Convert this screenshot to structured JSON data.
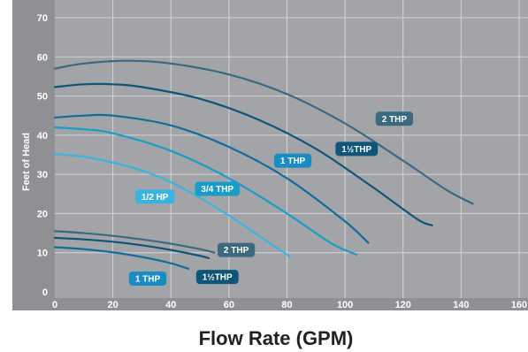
{
  "chart_data": {
    "type": "line",
    "xlabel": "Flow Rate (GPM)",
    "ylabel": "Feet of Head",
    "xlim": [
      0,
      160
    ],
    "ylim": [
      0,
      73
    ],
    "x_ticks": [
      "0",
      "20",
      "40",
      "60",
      "80",
      "100",
      "120",
      "140",
      "160"
    ],
    "y_ticks": [
      "0",
      "10",
      "20",
      "30",
      "40",
      "50",
      "60",
      "70"
    ],
    "grid": true,
    "colors": {
      "panel_background": "#a2a4a7",
      "axis_band": "#8e9093",
      "grid": "#d4d5d7"
    },
    "series": [
      {
        "name": "2 THP",
        "color": "#3b6a80",
        "x": [
          0,
          10,
          25,
          40,
          60,
          80,
          100,
          120,
          135,
          144
        ],
        "y": [
          57,
          58.3,
          59,
          58.3,
          55.5,
          50.5,
          43,
          33.5,
          26,
          22.5
        ]
      },
      {
        "name": "1½THP",
        "color": "#0e5578",
        "x": [
          0,
          10,
          20,
          30,
          50,
          70,
          90,
          110,
          125,
          130
        ],
        "y": [
          52.3,
          53,
          53,
          52.3,
          49.3,
          44,
          36.5,
          26.5,
          18.5,
          17
        ]
      },
      {
        "name": "1 THP",
        "color": "#136d9c",
        "x": [
          0,
          10,
          20,
          40,
          60,
          80,
          100,
          108
        ],
        "y": [
          44.5,
          45,
          45,
          42.5,
          37,
          29,
          18,
          12.5
        ]
      },
      {
        "name": "3/4 THP",
        "color": "#1a9cc8",
        "x": [
          0,
          10,
          20,
          40,
          60,
          80,
          95,
          104
        ],
        "y": [
          42,
          41.5,
          40.5,
          36,
          29,
          20,
          12.5,
          9.5
        ]
      },
      {
        "name": "1/2 HP",
        "color": "#3bb3e0",
        "x": [
          0,
          10,
          20,
          30,
          40,
          50,
          60,
          70,
          78,
          81
        ],
        "y": [
          35.2,
          34.5,
          33,
          31,
          28,
          24,
          19.5,
          14.5,
          10.5,
          9
        ]
      },
      {
        "name": "2 THP",
        "color": "#3b6a80",
        "x": [
          0,
          10,
          20,
          30,
          40,
          50,
          55
        ],
        "y": [
          15.5,
          15,
          14.3,
          13.4,
          12.3,
          10.9,
          10
        ]
      },
      {
        "name": "1½THP",
        "color": "#0e5578",
        "x": [
          0,
          10,
          20,
          30,
          40,
          50,
          53
        ],
        "y": [
          13.8,
          13.4,
          12.8,
          11.9,
          10.7,
          9.2,
          8.6
        ]
      },
      {
        "name": "1 THP",
        "color": "#136d9c",
        "x": [
          0,
          10,
          20,
          30,
          40,
          46
        ],
        "y": [
          11.4,
          10.9,
          10.1,
          8.9,
          7.3,
          5.9
        ]
      }
    ],
    "curve_labels": [
      {
        "text": "2 THP",
        "x": 117,
        "y": 44.2,
        "color": "#3b6a80"
      },
      {
        "text": "1½THP",
        "x": 104,
        "y": 36.5,
        "color": "#0e5578"
      },
      {
        "text": "1 THP",
        "x": 82,
        "y": 33.5,
        "color": "#1a8cc4"
      },
      {
        "text": "3/4 THP",
        "x": 56,
        "y": 26.3,
        "color": "#1a9cc8"
      },
      {
        "text": "1/2 HP",
        "x": 34.5,
        "y": 24.3,
        "color": "#3bb3e0"
      },
      {
        "text": "2 THP",
        "x": 62.5,
        "y": 10.7,
        "color": "#3b6a80"
      },
      {
        "text": "1½THP",
        "x": 56,
        "y": 3.8,
        "color": "#0e5578"
      },
      {
        "text": "1 THP",
        "x": 32,
        "y": 3.4,
        "color": "#1a8cc4"
      }
    ]
  }
}
